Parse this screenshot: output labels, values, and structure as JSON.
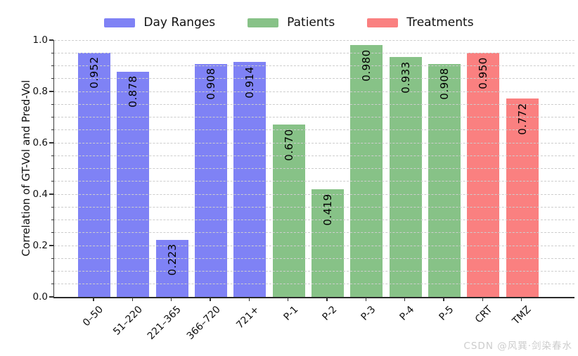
{
  "watermark": "CSDN @风巽·剑染春水",
  "chart_data": {
    "type": "bar",
    "title": "",
    "xlabel": "",
    "ylabel": "Correlation of GT-Vol and Pred-Vol",
    "ylim": [
      0.0,
      1.0
    ],
    "yticks": [
      "0.0",
      "0.2",
      "0.4",
      "0.6",
      "0.8",
      "1.0"
    ],
    "minor_tick_interval": 0.05,
    "grid": {
      "axis": "y",
      "style": "dashed",
      "color": "#cdcdcd",
      "interval": 0.05,
      "on_top_of_bars": true
    },
    "legend": {
      "position": "top-center",
      "entries": [
        {
          "label": "Day Ranges",
          "color": "#7f82f5"
        },
        {
          "label": "Patients",
          "color": "#87c287"
        },
        {
          "label": "Treatments",
          "color": "#fa8080"
        }
      ]
    },
    "categories": [
      "0–50",
      "51–220",
      "221–365",
      "366–720",
      "721+",
      "P-1",
      "P-2",
      "P-3",
      "P-4",
      "P-5",
      "CRT",
      "TMZ"
    ],
    "bars": [
      {
        "category": "0–50",
        "group": "Day Ranges",
        "value": 0.952,
        "value_label": "0.952"
      },
      {
        "category": "51–220",
        "group": "Day Ranges",
        "value": 0.878,
        "value_label": "0.878"
      },
      {
        "category": "221–365",
        "group": "Day Ranges",
        "value": 0.223,
        "value_label": "0.223"
      },
      {
        "category": "366–720",
        "group": "Day Ranges",
        "value": 0.908,
        "value_label": "0.908"
      },
      {
        "category": "721+",
        "group": "Day Ranges",
        "value": 0.914,
        "value_label": "0.914"
      },
      {
        "category": "P-1",
        "group": "Patients",
        "value": 0.67,
        "value_label": "0.670"
      },
      {
        "category": "P-2",
        "group": "Patients",
        "value": 0.419,
        "value_label": "0.419"
      },
      {
        "category": "P-3",
        "group": "Patients",
        "value": 0.98,
        "value_label": "0.980"
      },
      {
        "category": "P-4",
        "group": "Patients",
        "value": 0.933,
        "value_label": "0.933"
      },
      {
        "category": "P-5",
        "group": "Patients",
        "value": 0.908,
        "value_label": "0.908"
      },
      {
        "category": "CRT",
        "group": "Treatments",
        "value": 0.95,
        "value_label": "0.950"
      },
      {
        "category": "TMZ",
        "group": "Treatments",
        "value": 0.772,
        "value_label": "0.772"
      }
    ]
  }
}
